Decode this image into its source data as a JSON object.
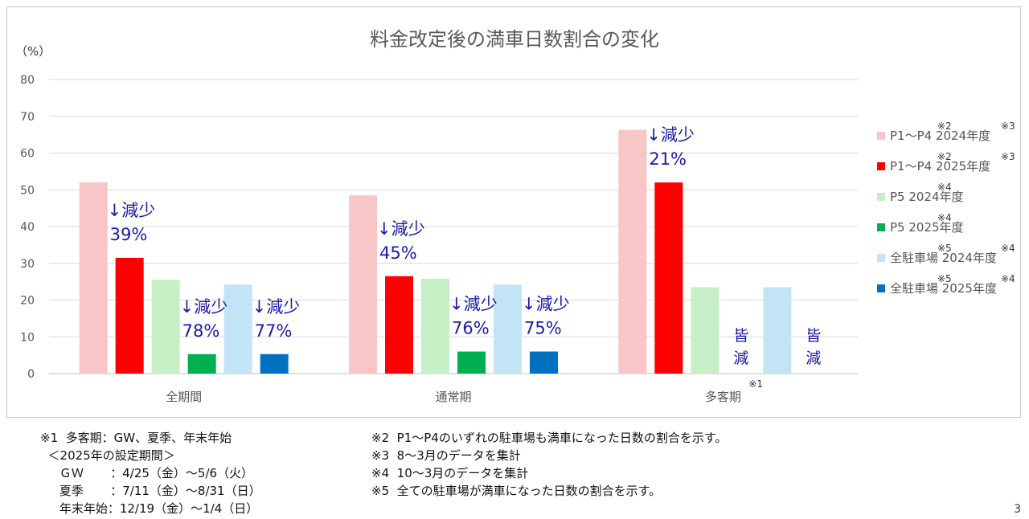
{
  "chart_data": {
    "type": "bar",
    "title": "料金改定後の満車日数割合の変化",
    "ylabel": "（%）",
    "ylim": [
      0,
      80
    ],
    "yticks": [
      "0",
      "10",
      "20",
      "30",
      "40",
      "50",
      "60",
      "70",
      "80"
    ],
    "grid": true,
    "legend_position": "right",
    "categories": [
      "全期間",
      "通常期",
      "多客期"
    ],
    "category_note": [
      "",
      "",
      "※1"
    ],
    "series": [
      {
        "name": "P1～P4 2024年度",
        "notes": [
          "※2",
          "※3"
        ],
        "color": "#f8c6c6",
        "values": [
          52,
          48.5,
          66.3
        ]
      },
      {
        "name": "P1～P4 2025年度",
        "notes": [
          "※2",
          "※3"
        ],
        "color": "#ff0000",
        "values": [
          31.5,
          26.5,
          52
        ]
      },
      {
        "name": "P5 2024年度",
        "notes": [
          "※4"
        ],
        "color": "#c6efc6",
        "values": [
          25.5,
          25.8,
          23.5
        ]
      },
      {
        "name": "P5 2025年度",
        "notes": [
          "※4"
        ],
        "color": "#00b050",
        "values": [
          5.3,
          6,
          0
        ]
      },
      {
        "name": "全駐車場 2024年度",
        "notes": [
          "※5",
          "※4"
        ],
        "color": "#c2e4f5",
        "values": [
          24.2,
          24.2,
          23.5
        ]
      },
      {
        "name": "全駐車場 2025年度",
        "notes": [
          "※5",
          "※4"
        ],
        "color": "#0070c0",
        "values": [
          5.3,
          6,
          0
        ]
      }
    ],
    "annotations": [
      {
        "category": 0,
        "series": 1,
        "lines": [
          "↓減少",
          "39%"
        ]
      },
      {
        "category": 0,
        "series": 3,
        "lines": [
          "↓減少",
          "78%"
        ]
      },
      {
        "category": 0,
        "series": 5,
        "lines": [
          "↓減少",
          "77%"
        ]
      },
      {
        "category": 1,
        "series": 1,
        "lines": [
          "↓減少",
          "45%"
        ]
      },
      {
        "category": 1,
        "series": 3,
        "lines": [
          "↓減少",
          "76%"
        ]
      },
      {
        "category": 1,
        "series": 5,
        "lines": [
          "↓減少",
          "75%"
        ]
      },
      {
        "category": 2,
        "series": 1,
        "lines": [
          "↓減少",
          "21%"
        ]
      },
      {
        "category": 2,
        "series": 3,
        "lines": [
          "皆",
          "減"
        ]
      },
      {
        "category": 2,
        "series": 5,
        "lines": [
          "皆",
          "減"
        ]
      }
    ],
    "annotation_color": "#1a1aa6"
  },
  "notes_left": [
    "※1  多客期：GW、夏季、年末年始",
    "  ＜2025年の設定期間＞",
    "     ＧＷ       ：4/25（金）～5/6（火）",
    "     夏季       ：7/11（金）～8/31（日）",
    "     年末年始：12/19（金）～1/4（日）"
  ],
  "notes_right": [
    "※2  P1～P4のいずれの駐車場も満車になった日数の割合を示す。",
    "※3  8～3月のデータを集計",
    "※4  10～3月のデータを集計",
    "※5  全ての駐車場が満車になった日数の割合を示す。"
  ],
  "page_number": "3"
}
